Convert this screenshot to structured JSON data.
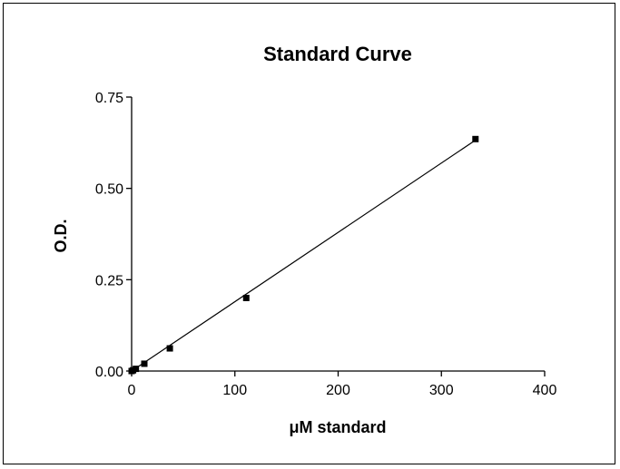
{
  "chart_data": {
    "type": "scatter",
    "title": "Standard Curve",
    "xlabel": "μM standard",
    "ylabel": "O.D.",
    "xlim": [
      0,
      400
    ],
    "ylim": [
      0,
      0.75
    ],
    "xticks": [
      0,
      100,
      200,
      300,
      400
    ],
    "xtick_labels": [
      "0",
      "100",
      "200",
      "300",
      "400"
    ],
    "yticks": [
      0,
      0.25,
      0.5,
      0.75
    ],
    "ytick_labels": [
      "0.00",
      "0.25",
      "0.50",
      "0.75"
    ],
    "grid": false,
    "series": [
      {
        "type": "scatter",
        "x": [
          0,
          1.4,
          4.1,
          12.3,
          37,
          111,
          333
        ],
        "y": [
          0.0,
          0.002,
          0.006,
          0.02,
          0.062,
          0.2,
          0.635
        ]
      },
      {
        "type": "line",
        "x": [
          0,
          333
        ],
        "y": [
          0.0,
          0.632
        ]
      }
    ],
    "colors": {
      "marker": "#000000",
      "line": "#000000",
      "axis": "#000000"
    }
  }
}
